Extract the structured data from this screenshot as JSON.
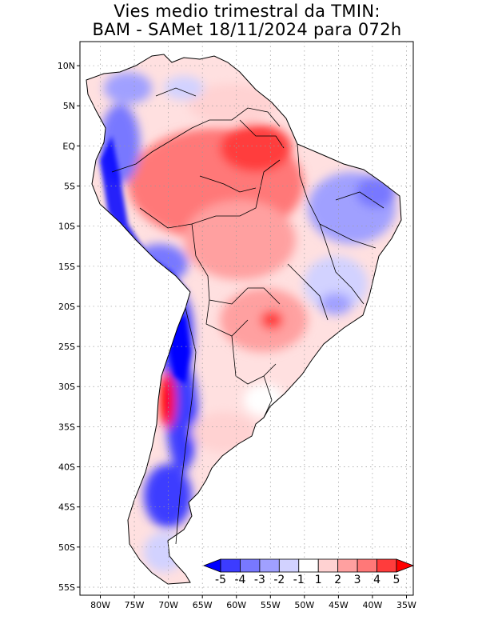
{
  "title": {
    "line1": "Vies medio trimestral da TMIN:",
    "line2": "BAM - SAMet 18/11/2024  para 072h"
  },
  "axes": {
    "lat_labels": [
      "10N",
      "5N",
      "EQ",
      "5S",
      "10S",
      "15S",
      "20S",
      "25S",
      "30S",
      "35S",
      "40S",
      "45S",
      "50S",
      "55S"
    ],
    "lon_labels": [
      "80W",
      "75W",
      "70W",
      "65W",
      "60W",
      "55W",
      "50W",
      "45W",
      "40W",
      "35W"
    ],
    "lat_values": [
      10,
      5,
      0,
      -5,
      -10,
      -15,
      -20,
      -25,
      -30,
      -35,
      -40,
      -45,
      -50,
      -55
    ],
    "lon_values": [
      -80,
      -75,
      -70,
      -65,
      -60,
      -55,
      -50,
      -45,
      -40,
      -35
    ],
    "lat_range": [
      -56,
      13
    ],
    "lon_range": [
      -83,
      -34
    ],
    "grid": "dotted"
  },
  "colorbar": {
    "labels": [
      "-5",
      "-4",
      "-3",
      "-2",
      "-1",
      "1",
      "2",
      "3",
      "4",
      "5"
    ],
    "colors": [
      "#0000ff",
      "#3c3cff",
      "#7878ff",
      "#a0a0ff",
      "#d2d2ff",
      "#ffffff",
      "#ffd2d2",
      "#ffa0a0",
      "#ff7878",
      "#ff3c3c",
      "#ff0000"
    ],
    "placement": "bottom-right inset"
  }
}
